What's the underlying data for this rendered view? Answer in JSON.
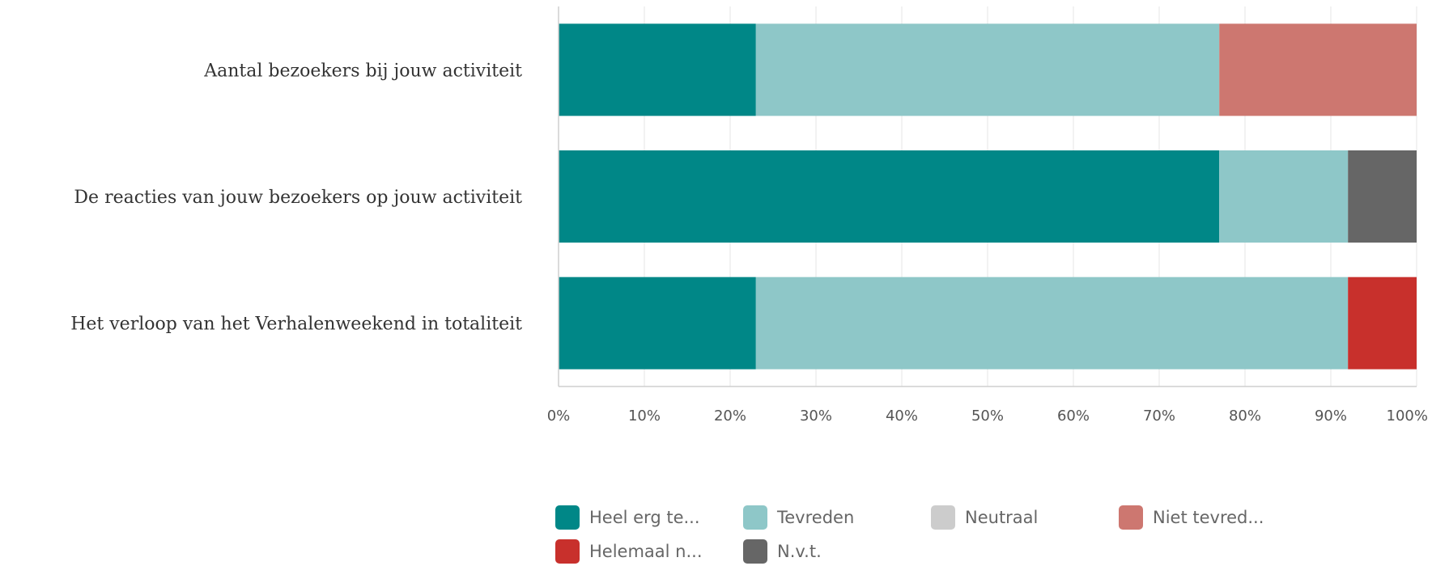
{
  "chart_data": {
    "type": "bar",
    "orientation": "horizontal",
    "stacked": true,
    "categories": [
      "Aantal bezoekers bij jouw activiteit",
      "De reacties van jouw bezoekers op jouw activiteit",
      "Het verloop van het Verhalenweekend in totaliteit"
    ],
    "series": [
      {
        "name": "Heel erg te...",
        "color": "#008787",
        "values": [
          23,
          77,
          23
        ]
      },
      {
        "name": "Tevreden",
        "color": "#8ec7c8",
        "values": [
          54,
          15,
          69
        ]
      },
      {
        "name": "Neutraal",
        "color": "#cccccc",
        "values": [
          0,
          0,
          0
        ]
      },
      {
        "name": "Niet tevred...",
        "color": "#cd7770",
        "values": [
          23,
          0,
          0
        ]
      },
      {
        "name": "Helemaal n...",
        "color": "#c8302c",
        "values": [
          0,
          0,
          8
        ]
      },
      {
        "name": "N.v.t.",
        "color": "#666666",
        "values": [
          0,
          8,
          0
        ]
      }
    ],
    "xlim": [
      0,
      100
    ],
    "x_ticks": [
      "0%",
      "10%",
      "20%",
      "30%",
      "40%",
      "50%",
      "60%",
      "70%",
      "80%",
      "90%",
      "100%"
    ],
    "grid": true,
    "legend_position": "bottom"
  }
}
